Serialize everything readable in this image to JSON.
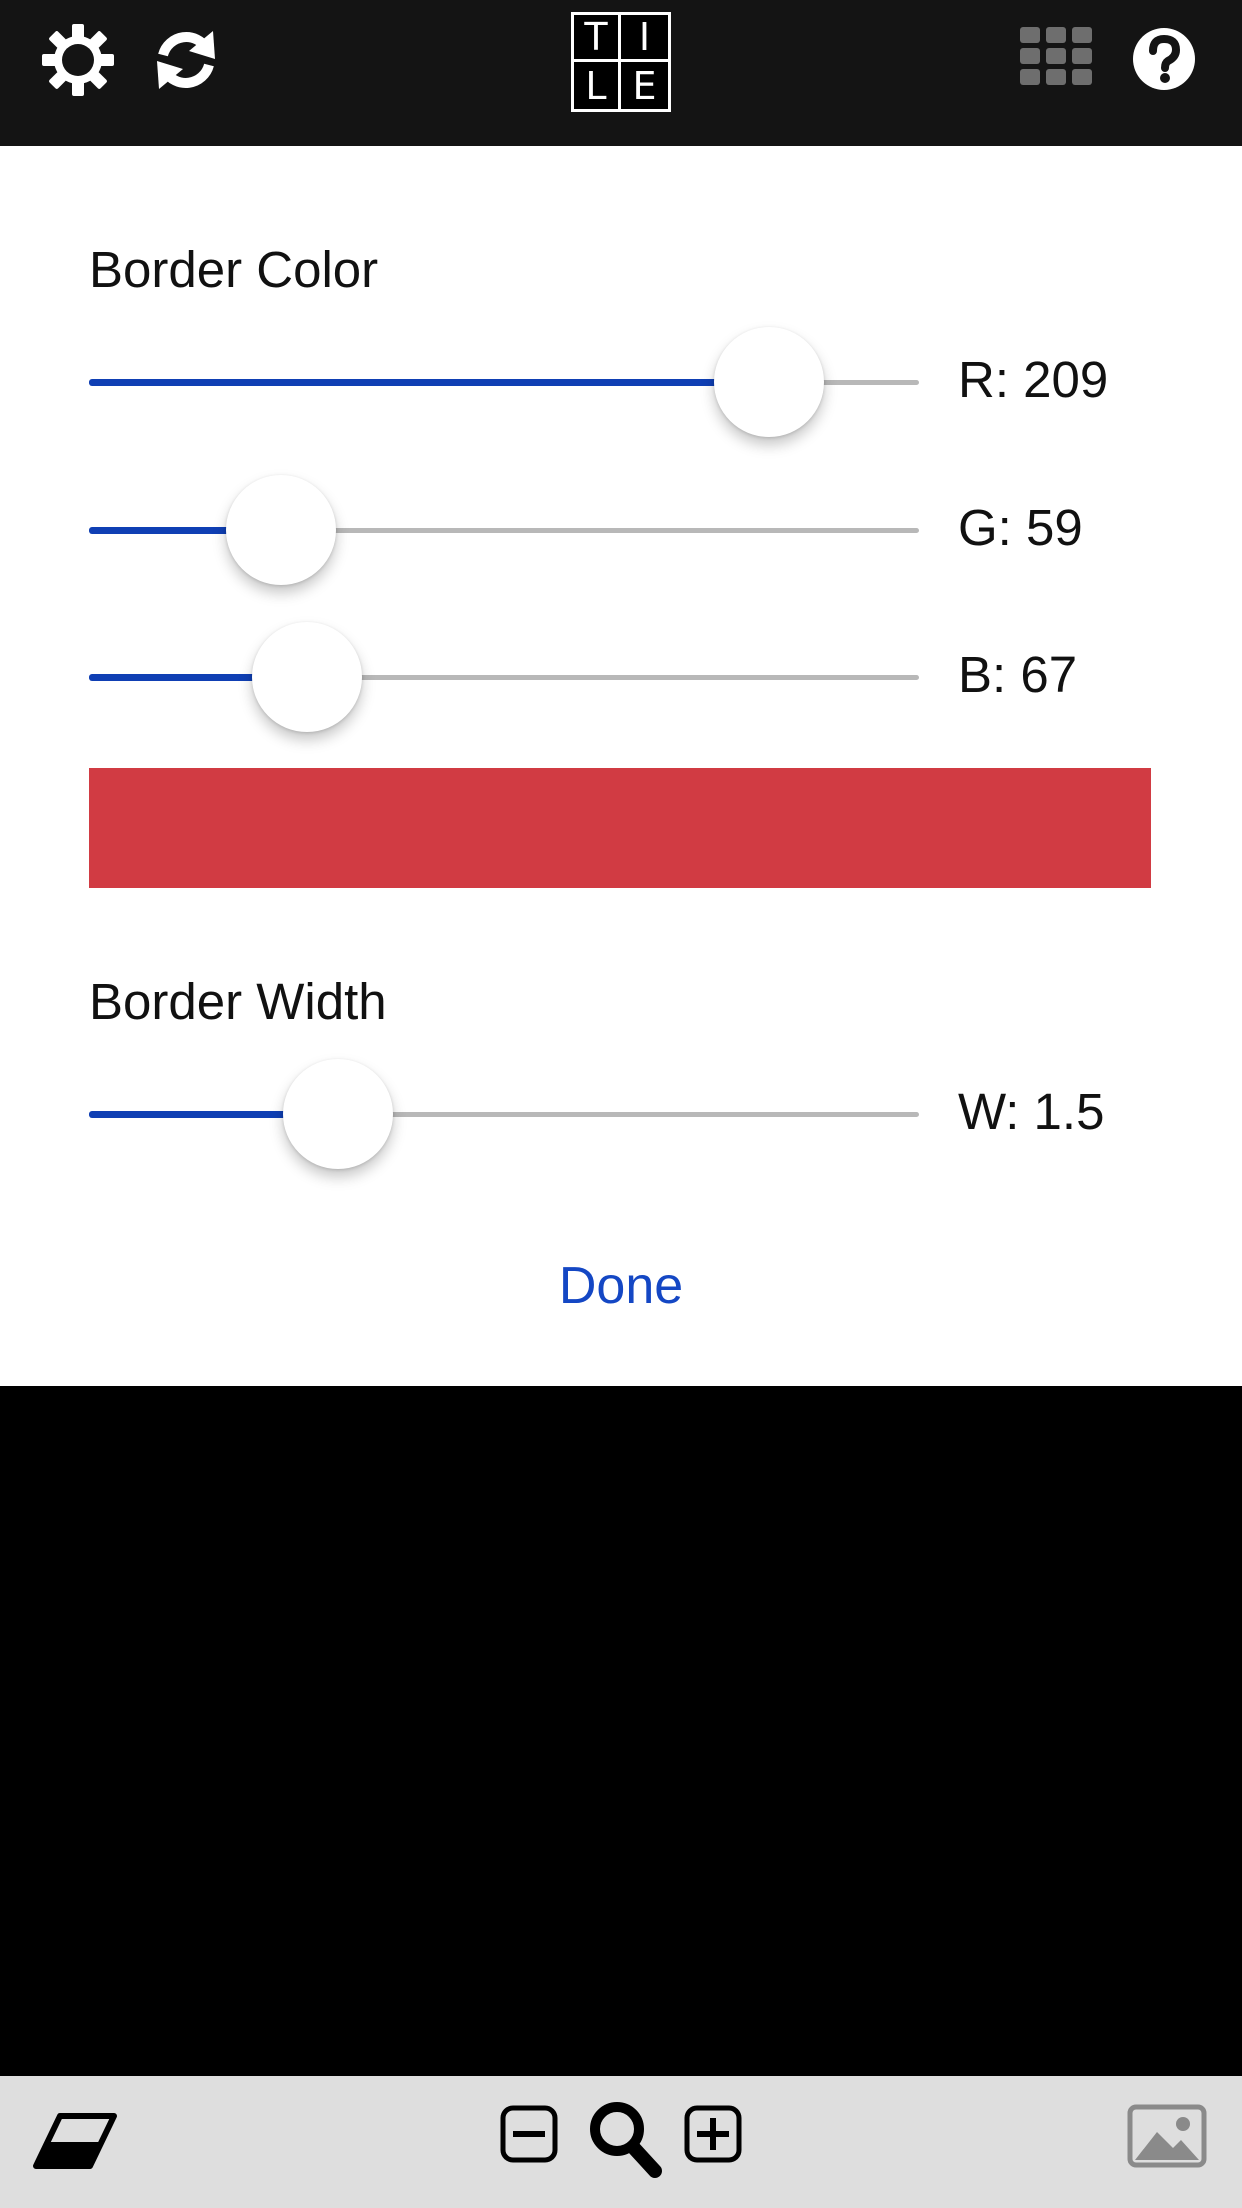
{
  "toolbar": {
    "settings_icon": "gear-icon",
    "refresh_icon": "refresh-icon",
    "grid_icon": "grid-icon",
    "help_icon": "help-icon"
  },
  "logo": {
    "letters": [
      "T",
      "I",
      "L",
      "E"
    ]
  },
  "border_color": {
    "title": "Border Color",
    "red": {
      "label": "R: 209",
      "value": 209,
      "max": 255
    },
    "green": {
      "label": "G: 59",
      "value": 59,
      "max": 255
    },
    "blue": {
      "label": "B: 67",
      "value": 67,
      "max": 255
    },
    "swatch_color": "#d13b43"
  },
  "border_width": {
    "title": "Border Width",
    "width": {
      "label": "W: 1.5",
      "value": 1.5,
      "min": 0,
      "max": 5
    }
  },
  "done_label": "Done",
  "bottom_toolbar": {
    "eraser_icon": "eraser-icon",
    "zoom_out_icon": "zoom-out-icon",
    "zoom_icon": "magnifier-icon",
    "zoom_in_icon": "zoom-in-icon",
    "image_icon": "image-icon"
  },
  "colors": {
    "accent": "#0f3fb4",
    "link": "#1447c4",
    "topbar": "#141414",
    "bottombar": "#dedede"
  }
}
